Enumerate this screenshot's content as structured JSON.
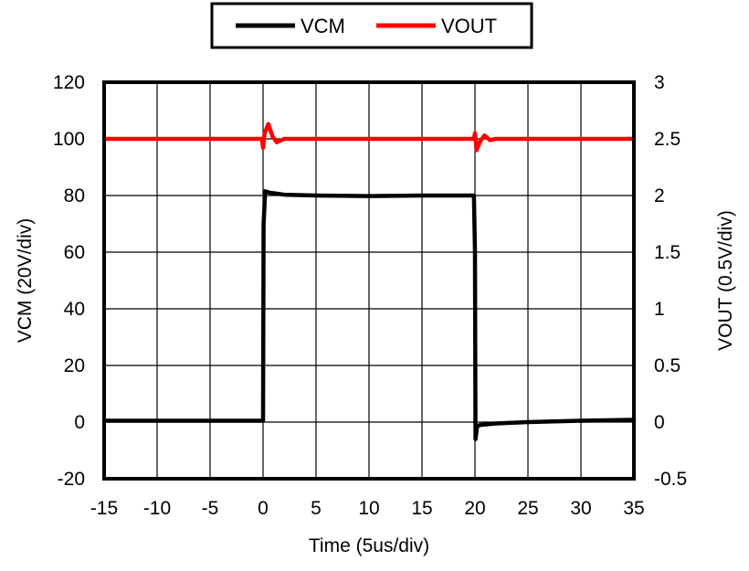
{
  "chart_data": {
    "type": "line",
    "xlabel": "Time (5us/div)",
    "ylabel_left": "VCM (20V/div)",
    "ylabel_right": "VOUT (0.5V/div)",
    "xlim": [
      -15,
      35
    ],
    "ylim_left": [
      -20,
      120
    ],
    "ylim_right": [
      -0.5,
      3
    ],
    "x_ticks": [
      "-15",
      "-10",
      "-5",
      "0",
      "5",
      "10",
      "15",
      "20",
      "25",
      "30",
      "35"
    ],
    "y_left_ticks": [
      "-20",
      "0",
      "20",
      "40",
      "60",
      "80",
      "100",
      "120"
    ],
    "y_right_ticks": [
      "-0.5",
      "0",
      "0.5",
      "1",
      "1.5",
      "2",
      "2.5",
      "3"
    ],
    "grid": true,
    "legend_position": "top-center",
    "series": [
      {
        "name": "VCM",
        "axis": "left",
        "color": "#000000",
        "x": [
          -15,
          -5,
          0,
          0.05,
          0.2,
          0.6,
          2,
          5,
          10,
          15,
          19.9,
          20,
          20.05,
          20.2,
          20.5,
          22,
          25,
          30,
          35
        ],
        "y": [
          0.5,
          0.5,
          0.5,
          70,
          81.5,
          81,
          80.3,
          80,
          79.8,
          80,
          80,
          60,
          -6,
          -1.5,
          -1,
          -0.5,
          0,
          0.5,
          0.8
        ]
      },
      {
        "name": "VOUT",
        "axis": "right",
        "color": "#ff0000",
        "x": [
          -15,
          -5,
          -0.1,
          0,
          0.15,
          0.5,
          0.9,
          1.3,
          2,
          5,
          10,
          15,
          19.9,
          20,
          20.15,
          20.5,
          20.9,
          21.4,
          22,
          25,
          30,
          35
        ],
        "y": [
          2.5,
          2.5,
          2.5,
          2.42,
          2.55,
          2.63,
          2.52,
          2.47,
          2.5,
          2.5,
          2.5,
          2.5,
          2.5,
          2.55,
          2.4,
          2.48,
          2.53,
          2.49,
          2.5,
          2.5,
          2.5,
          2.5
        ]
      }
    ]
  }
}
